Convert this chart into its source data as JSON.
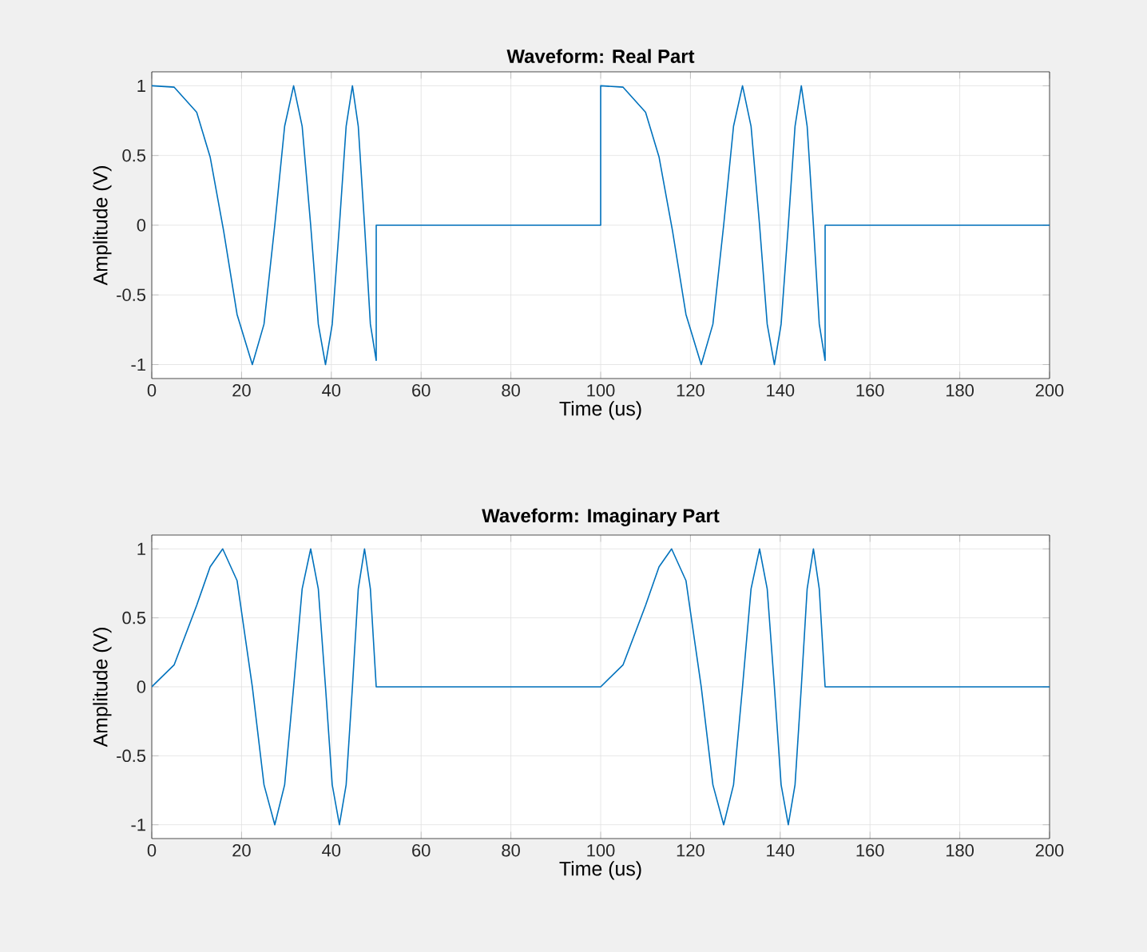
{
  "chart_data": [
    {
      "type": "line",
      "title": "Waveform: Real Part",
      "xlabel": "Time (us)",
      "ylabel": "Amplitude (V)",
      "xlim": [
        0,
        200
      ],
      "ylim": [
        -1.1,
        1.1
      ],
      "xticks": [
        0,
        20,
        40,
        60,
        80,
        100,
        120,
        140,
        160,
        180,
        200
      ],
      "yticks": [
        -1,
        -0.5,
        0,
        0.5,
        1
      ],
      "grid": true,
      "series": [
        {
          "color": "#0072bd",
          "x": [
            0,
            5,
            10,
            13,
            16,
            19,
            22.4,
            25,
            27.4,
            29.6,
            31.6,
            33.5,
            35.4,
            37.1,
            38.7,
            40.2,
            41.8,
            43.3,
            44.7,
            46,
            47.4,
            48.7,
            50,
            50,
            100,
            100,
            105,
            110,
            113,
            116,
            119,
            122.4,
            125,
            127.4,
            129.6,
            131.6,
            133.5,
            135.4,
            137.1,
            138.7,
            140.2,
            141.8,
            143.3,
            144.7,
            146,
            147.4,
            148.7,
            150,
            150,
            200
          ],
          "values": [
            1,
            0.99,
            0.81,
            0.49,
            -0.04,
            -0.64,
            -1,
            -0.71,
            0,
            0.71,
            1,
            0.71,
            0,
            -0.71,
            -1,
            -0.71,
            0,
            0.71,
            1,
            0.71,
            0,
            -0.71,
            -0.97,
            0,
            0,
            1,
            0.99,
            0.81,
            0.49,
            -0.04,
            -0.64,
            -1,
            -0.71,
            0,
            0.71,
            1,
            0.71,
            0,
            -0.71,
            -1,
            -0.71,
            0,
            0.71,
            1,
            0.71,
            0,
            -0.71,
            -0.97,
            0,
            0
          ]
        }
      ]
    },
    {
      "type": "line",
      "title": "Waveform: Imaginary Part",
      "xlabel": "Time (us)",
      "ylabel": "Amplitude (V)",
      "xlim": [
        0,
        200
      ],
      "ylim": [
        -1.1,
        1.1
      ],
      "xticks": [
        0,
        20,
        40,
        60,
        80,
        100,
        120,
        140,
        160,
        180,
        200
      ],
      "yticks": [
        -1,
        -0.5,
        0,
        0.5,
        1
      ],
      "grid": true,
      "series": [
        {
          "color": "#0072bd",
          "x": [
            0,
            5,
            10,
            13,
            15.8,
            19,
            22.4,
            25,
            27.4,
            29.6,
            31.6,
            33.5,
            35.4,
            37.1,
            38.7,
            40.2,
            41.8,
            43.3,
            44.7,
            46,
            47.4,
            48.7,
            50,
            100,
            105,
            110,
            113,
            115.8,
            119,
            122.4,
            125,
            127.4,
            129.6,
            131.6,
            133.5,
            135.4,
            137.1,
            138.7,
            140.2,
            141.8,
            143.3,
            144.7,
            146,
            147.4,
            148.7,
            150,
            200
          ],
          "values": [
            0,
            0.16,
            0.59,
            0.87,
            1,
            0.77,
            0,
            -0.71,
            -1,
            -0.71,
            0,
            0.71,
            1,
            0.71,
            0,
            -0.71,
            -1,
            -0.71,
            0,
            0.71,
            1,
            0.71,
            0,
            0,
            0.16,
            0.59,
            0.87,
            1,
            0.77,
            0,
            -0.71,
            -1,
            -0.71,
            0,
            0.71,
            1,
            0.71,
            0,
            -0.71,
            -1,
            -0.71,
            0,
            0.71,
            1,
            0.71,
            0,
            0
          ]
        }
      ]
    }
  ]
}
